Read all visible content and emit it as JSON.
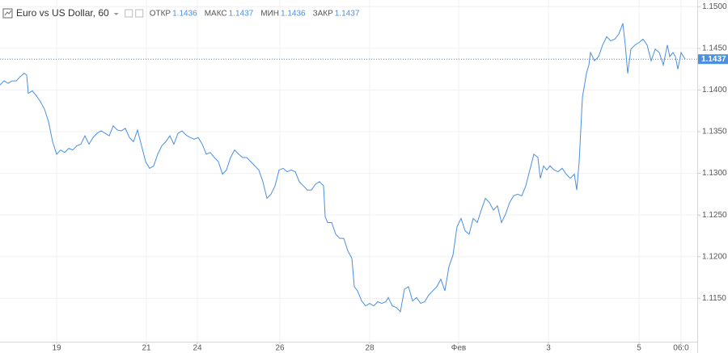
{
  "chart_data": {
    "type": "line",
    "title": "Euro vs US Dollar, 60",
    "ohlc": {
      "labels": [
        "ОТКР",
        "МАКС",
        "МИН",
        "ЗАКР"
      ],
      "values": [
        1.1436,
        1.1437,
        1.1436,
        1.1437
      ]
    },
    "last_price": 1.1437,
    "grid": true,
    "xlim": [
      0,
      431
    ],
    "xticks": [
      {
        "value": 35,
        "label": "19"
      },
      {
        "value": 90.5,
        "label": "21"
      },
      {
        "value": 122,
        "label": "24"
      },
      {
        "value": 173,
        "label": "26"
      },
      {
        "value": 228.5,
        "label": "28"
      },
      {
        "value": 283.5,
        "label": "Фев"
      },
      {
        "value": 339,
        "label": "3"
      },
      {
        "value": 395,
        "label": "5"
      },
      {
        "value": 421,
        "label": "06:0"
      }
    ],
    "ylim": [
      1.1098,
      1.1508
    ],
    "yticks": [
      {
        "value": 1.115,
        "label": "1.1150"
      },
      {
        "value": 1.12,
        "label": "1.1200"
      },
      {
        "value": 1.125,
        "label": "1.1250"
      },
      {
        "value": 1.13,
        "label": "1.1300"
      },
      {
        "value": 1.135,
        "label": "1.1350"
      },
      {
        "value": 1.14,
        "label": "1.1400"
      },
      {
        "value": 1.145,
        "label": "1.1450"
      },
      {
        "value": 1.15,
        "label": "1.1500"
      }
    ],
    "series": [
      {
        "color": "#4a8fe0",
        "x": [
          0,
          2.5,
          5,
          7.5,
          10,
          12.5,
          15,
          16.5,
          17.5,
          20,
          22.5,
          25,
          27.5,
          30,
          32.5,
          35,
          37.5,
          40,
          42.5,
          45,
          47.5,
          50,
          52.5,
          55,
          57.5,
          60,
          62.5,
          65,
          67.5,
          70,
          72.5,
          75,
          77.5,
          80,
          82.5,
          85,
          87.5,
          90,
          92.5,
          95,
          97.5,
          100,
          102.5,
          105,
          107.5,
          110,
          112.5,
          115,
          117.5,
          120,
          122.5,
          125,
          127.5,
          130,
          132.5,
          135,
          137.5,
          140,
          142.5,
          145,
          147.5,
          150,
          152.5,
          155,
          157.5,
          160,
          162.5,
          165,
          167.5,
          170,
          172.5,
          175,
          177.5,
          180,
          182.5,
          185,
          187.5,
          190,
          192.5,
          195,
          197.5,
          200,
          201,
          202.5,
          205,
          207.5,
          210,
          212.5,
          215,
          217.5,
          219,
          221,
          223.5,
          226,
          228.5,
          231,
          233.5,
          236,
          238.5,
          240,
          242.5,
          245,
          247.5,
          250,
          252.5,
          255,
          257.5,
          260,
          262.5,
          265,
          267.5,
          270,
          272.5,
          275,
          277.5,
          280,
          282.5,
          285,
          287.5,
          290,
          292.5,
          295,
          297.5,
          300,
          302.5,
          305,
          307.5,
          310,
          312.5,
          315,
          317.5,
          320,
          322.5,
          325,
          327.5,
          330,
          332.5,
          334,
          336,
          338,
          340,
          342.5,
          345,
          347.5,
          350,
          352.5,
          355,
          356.5,
          358,
          360,
          362.5,
          364,
          365,
          367.5,
          370,
          372.5,
          375,
          377.5,
          380,
          382.5,
          385,
          386.5,
          388,
          390,
          392.5,
          395,
          397.5,
          400,
          402.5,
          405,
          407.5,
          410,
          412.5,
          414,
          416,
          417.5,
          419,
          421,
          423.5
        ],
        "values": [
          1.1406,
          1.1411,
          1.1408,
          1.1411,
          1.1411,
          1.1416,
          1.142,
          1.1418,
          1.1396,
          1.1399,
          1.1393,
          1.1386,
          1.1377,
          1.1362,
          1.1338,
          1.1323,
          1.1328,
          1.1325,
          1.133,
          1.1328,
          1.1333,
          1.1335,
          1.1345,
          1.1335,
          1.1343,
          1.1348,
          1.1351,
          1.1348,
          1.1345,
          1.1357,
          1.1352,
          1.1351,
          1.1354,
          1.1343,
          1.1338,
          1.1352,
          1.1333,
          1.1314,
          1.1306,
          1.1309,
          1.1323,
          1.1333,
          1.1338,
          1.1345,
          1.1335,
          1.1348,
          1.1351,
          1.1346,
          1.1343,
          1.1341,
          1.1343,
          1.1335,
          1.1323,
          1.1325,
          1.1319,
          1.1314,
          1.1299,
          1.1304,
          1.1319,
          1.1328,
          1.1323,
          1.1319,
          1.1319,
          1.1314,
          1.1309,
          1.1304,
          1.129,
          1.127,
          1.1275,
          1.1285,
          1.1304,
          1.1306,
          1.1302,
          1.1304,
          1.1302,
          1.129,
          1.1285,
          1.128,
          1.128,
          1.1287,
          1.129,
          1.1285,
          1.1248,
          1.1241,
          1.1241,
          1.1227,
          1.1222,
          1.1222,
          1.1207,
          1.1198,
          1.1164,
          1.1159,
          1.1147,
          1.1141,
          1.1144,
          1.1141,
          1.1146,
          1.1144,
          1.1146,
          1.1151,
          1.1141,
          1.1139,
          1.1134,
          1.1161,
          1.1164,
          1.1147,
          1.1151,
          1.1144,
          1.1146,
          1.1154,
          1.1159,
          1.1164,
          1.1173,
          1.1159,
          1.1188,
          1.1202,
          1.1236,
          1.1246,
          1.1231,
          1.1227,
          1.1246,
          1.1241,
          1.1256,
          1.127,
          1.1265,
          1.1256,
          1.1261,
          1.1241,
          1.1251,
          1.1265,
          1.1273,
          1.1275,
          1.1273,
          1.1285,
          1.1304,
          1.1323,
          1.1319,
          1.1294,
          1.1309,
          1.1304,
          1.1309,
          1.1304,
          1.1302,
          1.1306,
          1.1299,
          1.1294,
          1.1299,
          1.128,
          1.1314,
          1.1391,
          1.142,
          1.143,
          1.1445,
          1.1435,
          1.144,
          1.1454,
          1.1464,
          1.1459,
          1.1461,
          1.1467,
          1.148,
          1.1454,
          1.142,
          1.1449,
          1.1454,
          1.1457,
          1.1461,
          1.1454,
          1.1435,
          1.1449,
          1.1445,
          1.143,
          1.1454,
          1.144,
          1.1445,
          1.144,
          1.1425,
          1.1445,
          1.1437
        ]
      }
    ]
  }
}
